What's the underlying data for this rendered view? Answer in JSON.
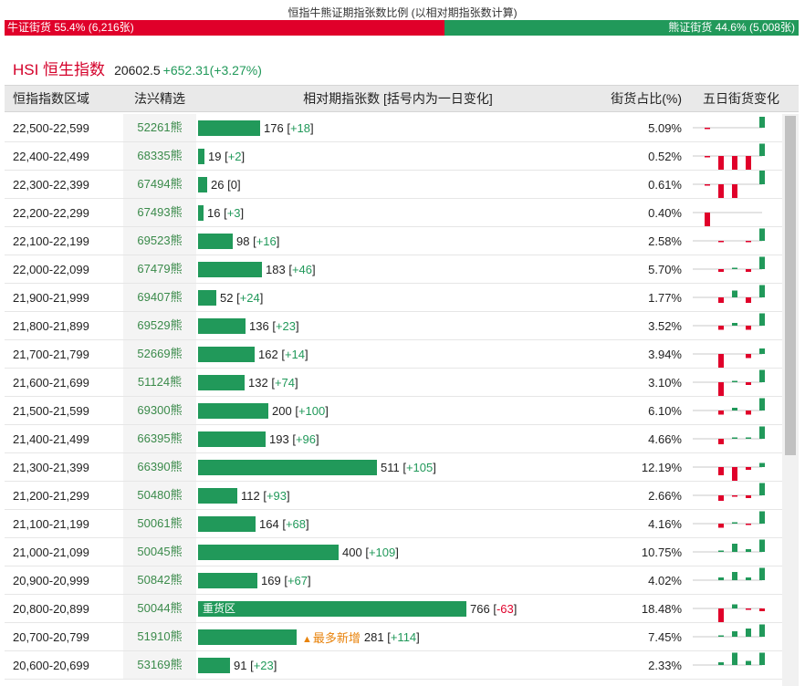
{
  "ratio": {
    "title": "恒指牛熊证期指张数比例 (以相对期指张数计算)",
    "bull_label": "牛证街货 55.4% (6,216张)",
    "bear_label": "熊证街货 44.6% (5,008张)",
    "bull_pct": 55.4,
    "bear_pct": 44.6,
    "bull_color": "#e0002a",
    "bear_color": "#21995a"
  },
  "index": {
    "name": "HSI 恒生指数",
    "price": "20602.5",
    "change": "+652.31(+3.27%)"
  },
  "table": {
    "headers": {
      "range": "恒指指数区域",
      "pick": "法兴精选",
      "count": "相对期指张数 [括号内为一日变化]",
      "pct": "街货占比(%)",
      "hist": "五日街货变化"
    },
    "max_count": 766,
    "rows": [
      {
        "range": "22,500-22,599",
        "pick": "52261熊",
        "count": "176",
        "chg": "+18",
        "pct": "5.09%",
        "hist": [
          -1,
          0,
          0,
          0,
          8
        ]
      },
      {
        "range": "22,400-22,499",
        "pick": "68335熊",
        "count": "19",
        "chg": "+2",
        "pct": "0.52%",
        "hist": [
          -1,
          -10,
          -10,
          -10,
          9
        ]
      },
      {
        "range": "22,300-22,399",
        "pick": "67494熊",
        "count": "26",
        "chg": "0",
        "pct": "0.61%",
        "hist": [
          -1,
          -10,
          -10,
          0,
          10
        ]
      },
      {
        "range": "22,200-22,299",
        "pick": "67493熊",
        "count": "16",
        "chg": "+3",
        "pct": "0.40%",
        "hist": [
          -10,
          0,
          0,
          0,
          0
        ]
      },
      {
        "range": "22,100-22,199",
        "pick": "69523熊",
        "count": "98",
        "chg": "+16",
        "pct": "2.58%",
        "hist": [
          0,
          -1,
          0,
          -1,
          9
        ]
      },
      {
        "range": "22,000-22,099",
        "pick": "67479熊",
        "count": "183",
        "chg": "+46",
        "pct": "5.70%",
        "hist": [
          0,
          -2,
          1,
          -2,
          9
        ]
      },
      {
        "range": "21,900-21,999",
        "pick": "69407熊",
        "count": "52",
        "chg": "+24",
        "pct": "1.77%",
        "hist": [
          0,
          -4,
          5,
          -4,
          9
        ]
      },
      {
        "range": "21,800-21,899",
        "pick": "69529熊",
        "count": "136",
        "chg": "+23",
        "pct": "3.52%",
        "hist": [
          0,
          -3,
          2,
          -3,
          9
        ]
      },
      {
        "range": "21,700-21,799",
        "pick": "52669熊",
        "count": "162",
        "chg": "+14",
        "pct": "3.94%",
        "hist": [
          0,
          -10,
          0,
          -3,
          4
        ]
      },
      {
        "range": "21,600-21,699",
        "pick": "51124熊",
        "count": "132",
        "chg": "+74",
        "pct": "3.10%",
        "hist": [
          0,
          -10,
          1,
          -2,
          9
        ]
      },
      {
        "range": "21,500-21,599",
        "pick": "69300熊",
        "count": "200",
        "chg": "+100",
        "pct": "6.10%",
        "hist": [
          0,
          -3,
          2,
          -3,
          9
        ]
      },
      {
        "range": "21,400-21,499",
        "pick": "66395熊",
        "count": "193",
        "chg": "+96",
        "pct": "4.66%",
        "hist": [
          0,
          -4,
          1,
          1,
          9
        ]
      },
      {
        "range": "21,300-21,399",
        "pick": "66390熊",
        "count": "511",
        "chg": "+105",
        "pct": "12.19%",
        "hist": [
          0,
          -6,
          -10,
          -2,
          3
        ]
      },
      {
        "range": "21,200-21,299",
        "pick": "50480熊",
        "count": "112",
        "chg": "+93",
        "pct": "2.66%",
        "hist": [
          0,
          -4,
          -1,
          -2,
          9
        ]
      },
      {
        "range": "21,100-21,199",
        "pick": "50061熊",
        "count": "164",
        "chg": "+68",
        "pct": "4.16%",
        "hist": [
          0,
          -3,
          1,
          -1,
          9
        ]
      },
      {
        "range": "21,000-21,099",
        "pick": "50045熊",
        "count": "400",
        "chg": "+109",
        "pct": "10.75%",
        "hist": [
          0,
          1,
          6,
          2,
          9
        ]
      },
      {
        "range": "20,900-20,999",
        "pick": "50842熊",
        "count": "169",
        "chg": "+67",
        "pct": "4.02%",
        "hist": [
          0,
          2,
          6,
          2,
          9
        ]
      },
      {
        "range": "20,800-20,899",
        "pick": "50044熊",
        "count": "766",
        "chg": "-63",
        "pct": "18.48%",
        "hist": [
          0,
          -10,
          3,
          -1,
          -2
        ],
        "label": "重货区"
      },
      {
        "range": "20,700-20,799",
        "pick": "51910熊",
        "count": "281",
        "chg": "+114",
        "pct": "7.45%",
        "hist": [
          0,
          1,
          4,
          6,
          9
        ],
        "tag": "最多新增",
        "tag_icon": "▲"
      },
      {
        "range": "20,600-20,699",
        "pick": "53169熊",
        "count": "91",
        "chg": "+23",
        "pct": "2.33%",
        "hist": [
          0,
          2,
          9,
          3,
          9
        ]
      }
    ]
  }
}
